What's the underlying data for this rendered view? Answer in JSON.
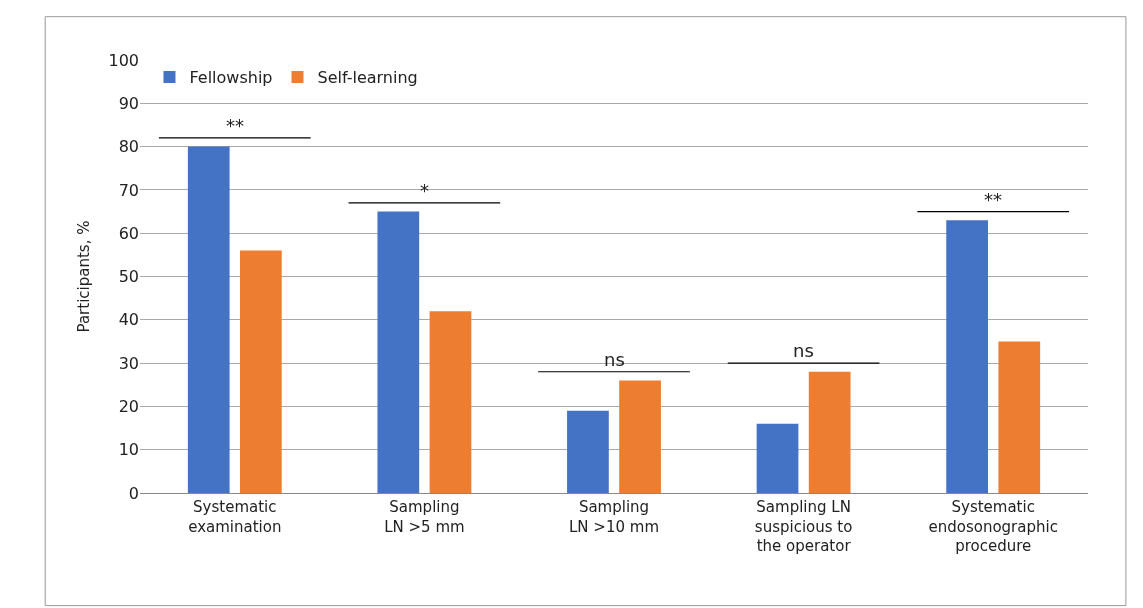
{
  "chart_data": {
    "type": "bar",
    "ylabel": "Participants, %",
    "categories": [
      "Systematic\nexamination",
      "Sampling\nLN >5 mm",
      "Sampling\nLN >10 mm",
      "Sampling LN\nsuspicious to\nthe operator",
      "Systematic\nendosonographic\nprocedure"
    ],
    "series": [
      {
        "name": "Fellowship",
        "color": "#4472c4",
        "values": [
          80,
          65,
          19,
          16,
          63
        ]
      },
      {
        "name": "Self-learning",
        "color": "#ed7d31",
        "values": [
          56,
          42,
          26,
          28,
          35
        ]
      }
    ],
    "annotations": [
      "**",
      "*",
      "ns",
      "ns",
      "**"
    ],
    "ylim": [
      0,
      100
    ],
    "yticks": [
      0,
      10,
      20,
      30,
      40,
      50,
      60,
      70,
      80,
      90,
      100
    ],
    "grid": "y",
    "legend": "top left"
  }
}
